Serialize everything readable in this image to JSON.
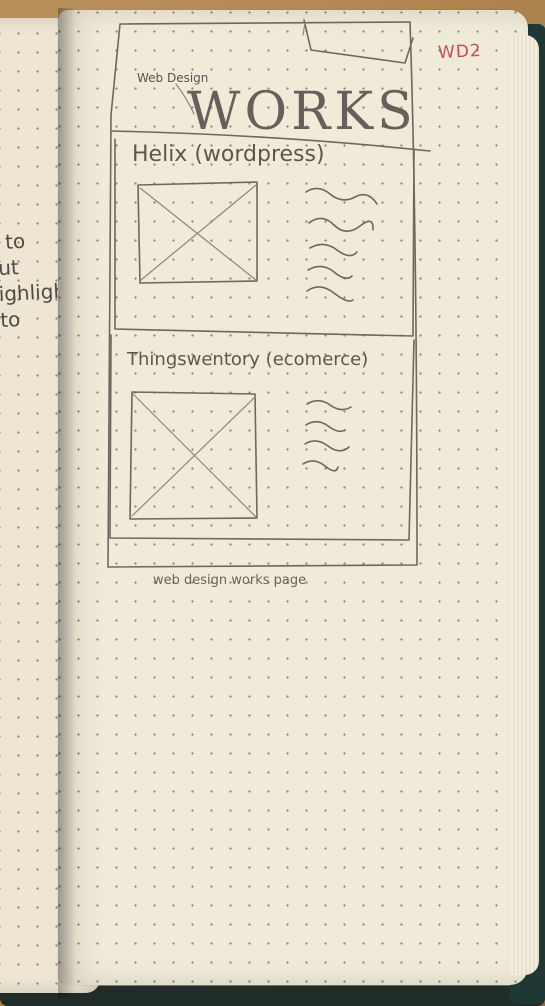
{
  "scene": {
    "left_page_notes": [
      "d to",
      "out",
      "highlight",
      "t to"
    ],
    "page_tag": "WD2",
    "sketch": {
      "brand_small": "Web Design",
      "brand_big": "WORKS",
      "projects": [
        {
          "title": "Helix (wordpress)"
        },
        {
          "title": "Thingswentory (ecomerce)"
        }
      ],
      "caption": "web design works page"
    }
  }
}
